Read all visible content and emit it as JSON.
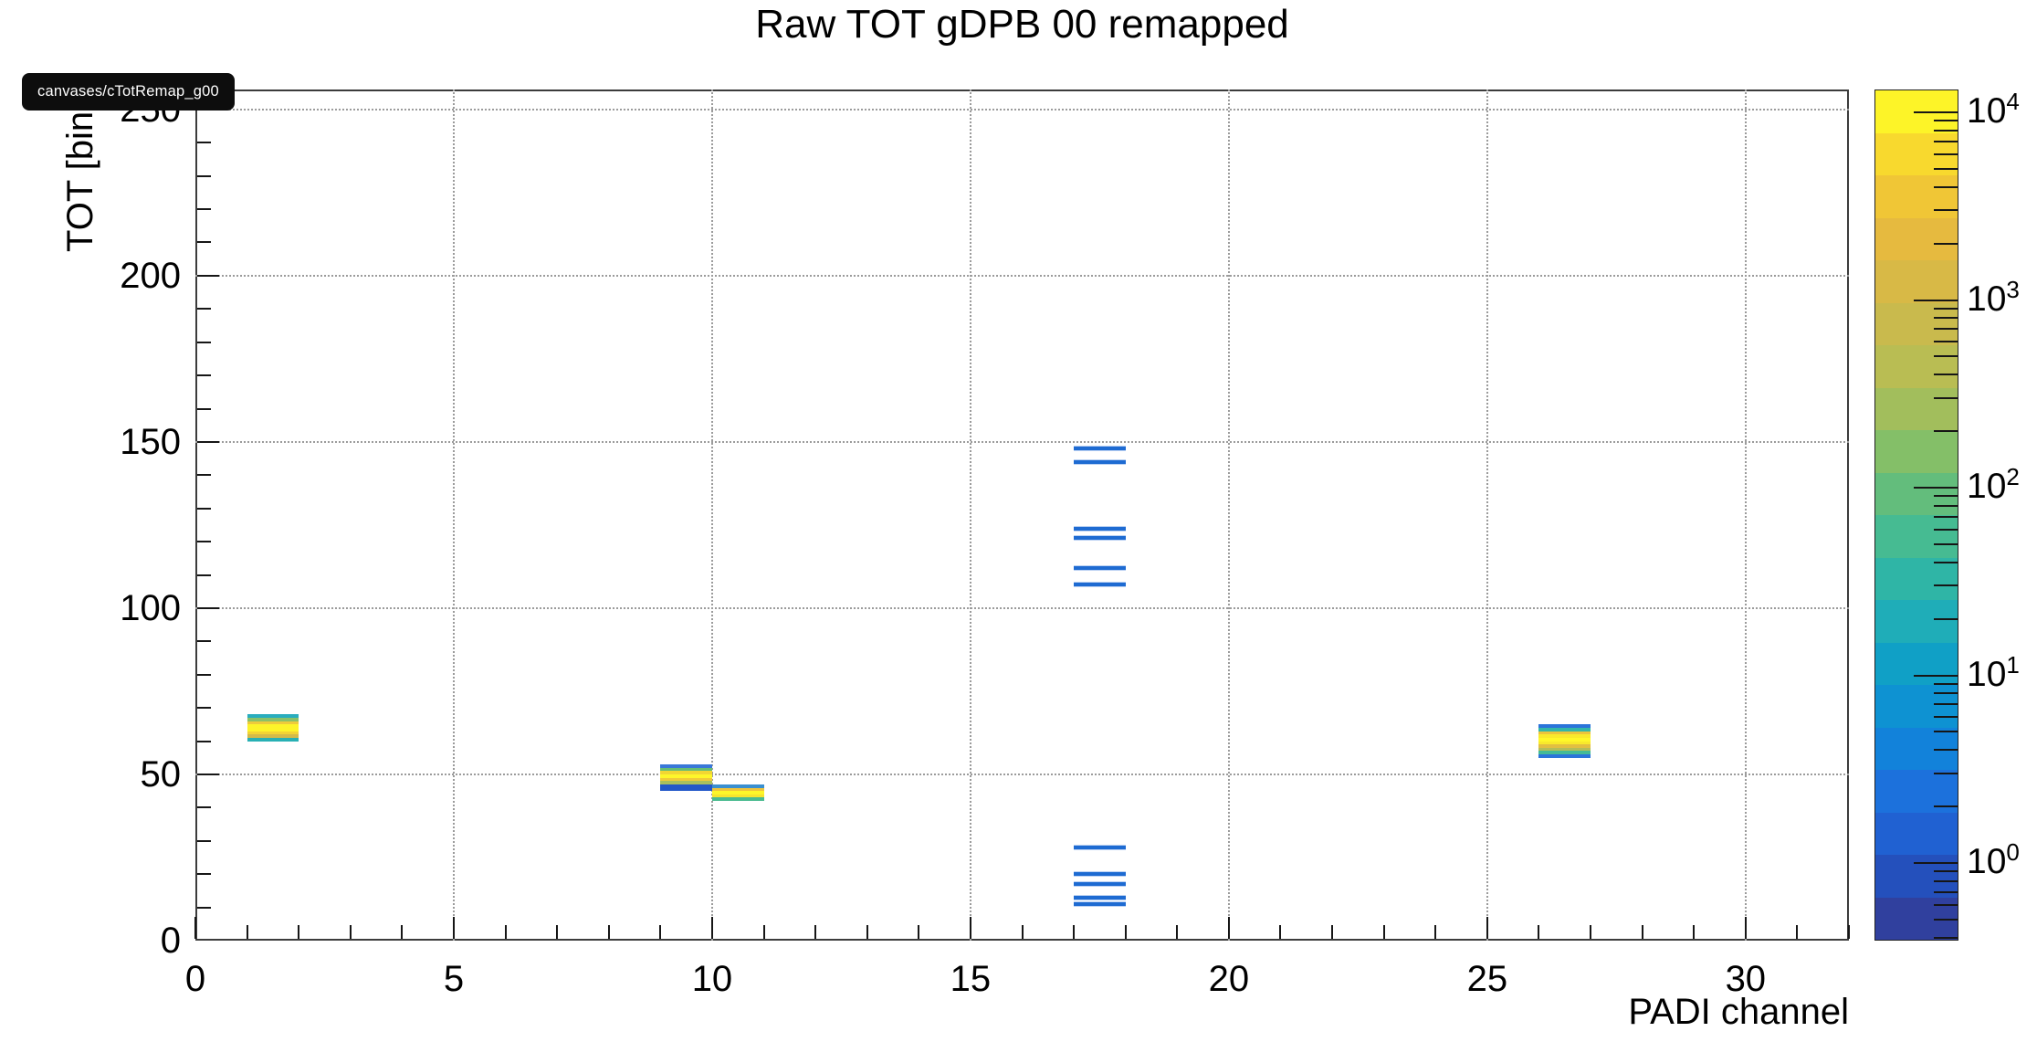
{
  "tooltip": {
    "text": "canvases/cTotRemap_g00"
  },
  "chart_data": {
    "type": "heatmap",
    "title": "Raw TOT gDPB 00 remapped",
    "xlabel": "PADI channel",
    "ylabel": "TOT [bin",
    "x_range": [
      0,
      32
    ],
    "y_range": [
      0,
      256
    ],
    "x_ticks": [
      0,
      5,
      10,
      15,
      20,
      25,
      30
    ],
    "y_ticks": [
      0,
      50,
      100,
      150,
      200,
      250
    ],
    "x_minor_step": 1,
    "y_minor_step": 10,
    "grid": true,
    "legend_position": "right-colorbar",
    "z_scale": "log",
    "z_tick_exponents": [
      0,
      1,
      2,
      3,
      4
    ],
    "palette_bottom_to_top": [
      "#30409e",
      "#2450bc",
      "#2061d2",
      "#1c71dc",
      "#1282da",
      "#0e92d2",
      "#10a0c6",
      "#1fadb8",
      "#2fb5a6",
      "#46bb92",
      "#63bd7c",
      "#84bf68",
      "#a2be5c",
      "#b9bd53",
      "#c9ba4d",
      "#d8b946",
      "#e6ba3f",
      "#f0c636",
      "#f8d92e",
      "#fdf428"
    ],
    "clusters": [
      {
        "name": "cluster-ch1-2",
        "channels": [
          1,
          2
        ],
        "tot": [
          60,
          68
        ],
        "stripe_colors_top_to_bottom": [
          "#29adbe",
          "#8ac168",
          "#eeca3c",
          "#fdf42a",
          "#fdf42a",
          "#f2d434",
          "#d3ba4a",
          "#28b0b4"
        ]
      },
      {
        "name": "cluster-ch9-10",
        "channels": [
          9,
          10
        ],
        "tot": [
          45,
          53
        ],
        "stripe_colors_top_to_bottom": [
          "#3a78d8",
          "#66bd74",
          "#f2d633",
          "#fdf62a",
          "#f0ca39",
          "#a8bf5e",
          "#2257c8",
          "#2257c8"
        ]
      },
      {
        "name": "cluster-ch10-11",
        "channels": [
          10,
          11
        ],
        "tot": [
          42,
          47
        ],
        "stripe_colors_top_to_bottom": [
          "#3a8fd0",
          "#eec33c",
          "#fdf62a",
          "#f6e42e",
          "#4bbb90"
        ]
      },
      {
        "name": "cluster-ch26-27",
        "channels": [
          26,
          27
        ],
        "tot": [
          55,
          65
        ],
        "stripe_colors_top_to_bottom": [
          "#2b74da",
          "#33b6a8",
          "#ecc43c",
          "#f9ea2b",
          "#fff829",
          "#f9ea2b",
          "#e2bf42",
          "#b3be58",
          "#44ba97",
          "#2b74da"
        ]
      }
    ],
    "sparse_lines": {
      "channels": [
        17,
        18
      ],
      "color": "#1e6bd2",
      "tot_values": [
        148,
        144,
        124,
        121,
        112,
        107,
        28,
        20,
        17,
        13,
        11
      ]
    }
  },
  "colors": {
    "background": "#ffffff",
    "grid": "#9b9b9b",
    "axis": "#161616",
    "frame": "#3c3c3c",
    "tooltip_bg": "#0d0d0d",
    "tooltip_text": "#ffffff"
  }
}
